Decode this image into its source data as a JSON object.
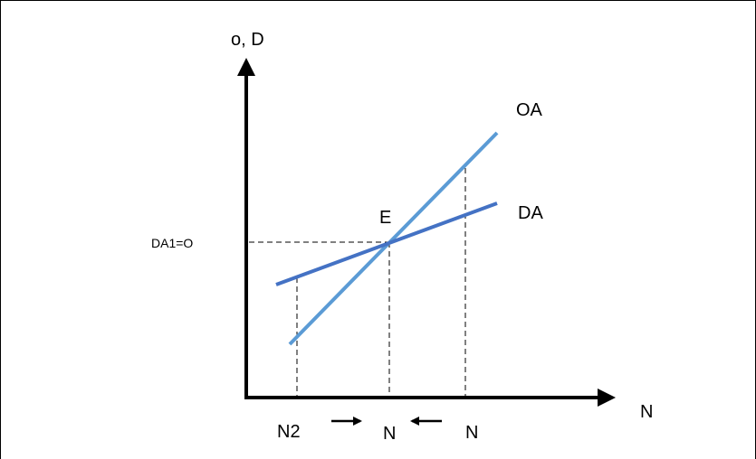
{
  "colors": {
    "axis": "#000000",
    "guide": "#000000",
    "supply_line": "#5b9bd5",
    "demand_line": "#4472c4"
  },
  "labels": {
    "y_axis": "o, D",
    "x_axis": "N",
    "equilibrium": "E",
    "equilibrium_level": "DA1=O",
    "line_oa": "OA",
    "line_da": "DA",
    "x_left": "N2",
    "x_center": "N",
    "x_right": "N"
  },
  "arrows": {
    "left": "right-arrow-icon",
    "right": "left-arrow-icon"
  }
}
